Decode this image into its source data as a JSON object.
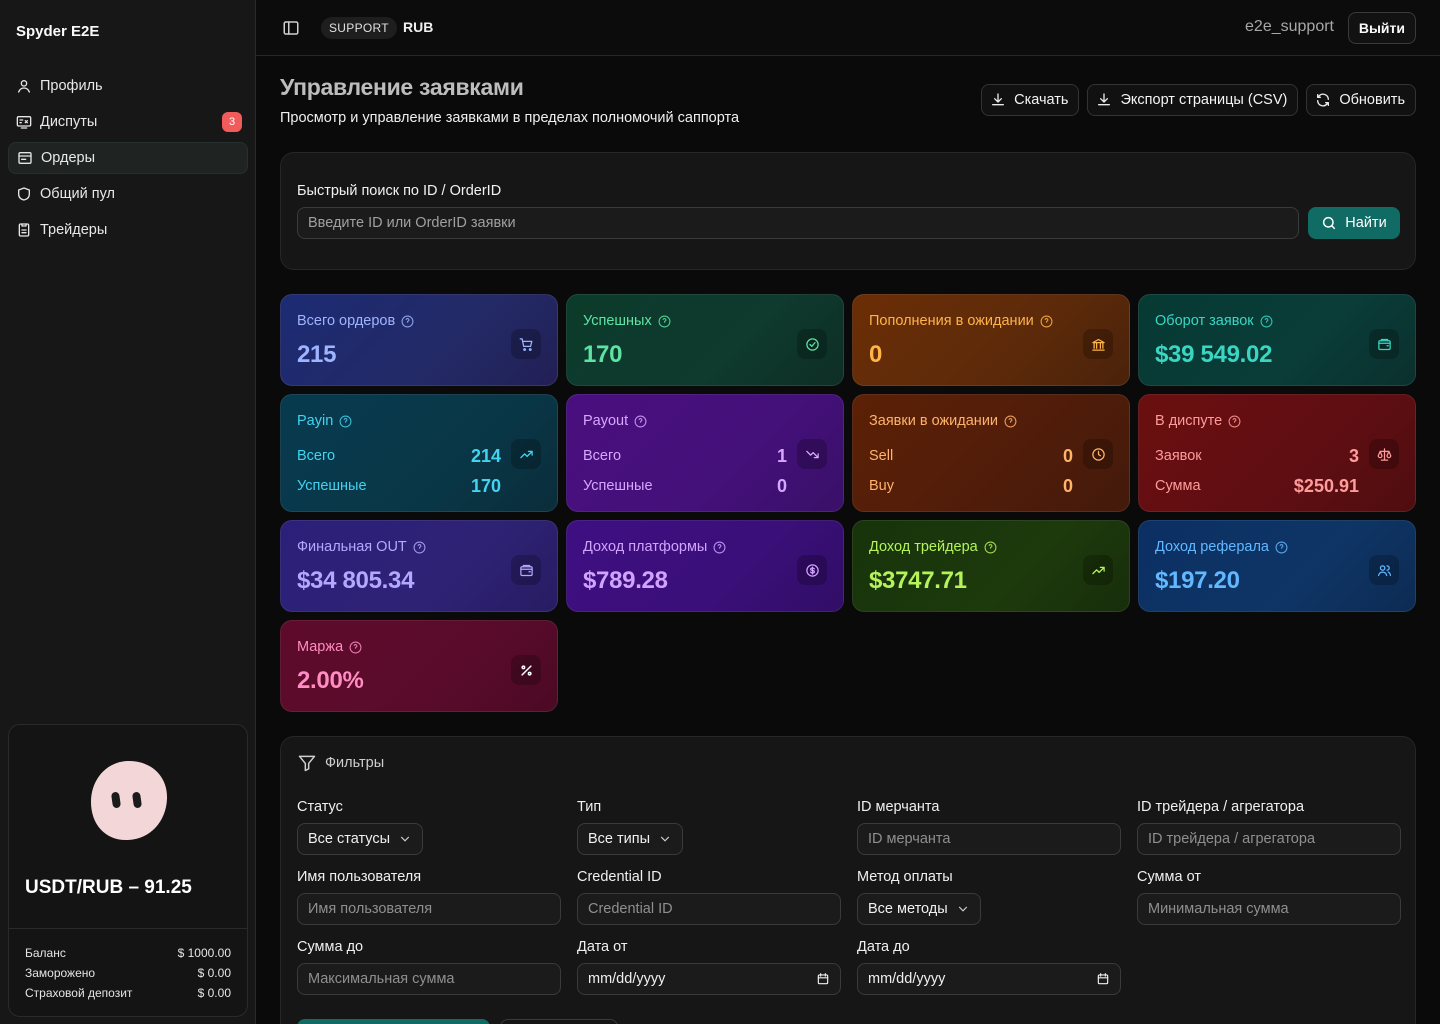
{
  "app": {
    "brand": "Spyder E2E"
  },
  "sidebar": {
    "items": [
      {
        "label": "Профиль",
        "icon": "user-icon"
      },
      {
        "label": "Диспуты",
        "icon": "dispute-icon",
        "badge": "3"
      },
      {
        "label": "Ордеры",
        "icon": "orders-icon",
        "active": true
      },
      {
        "label": "Общий пул",
        "icon": "shield-icon"
      },
      {
        "label": "Трейдеры",
        "icon": "traders-icon"
      }
    ],
    "rate_card": {
      "title": "USDT/RUB – 91.25",
      "rows": [
        {
          "label": "Баланс",
          "value": "$ 1000.00"
        },
        {
          "label": "Заморожено",
          "value": "$ 0.00"
        },
        {
          "label": "Страховой депозит",
          "value": "$ 0.00"
        }
      ]
    }
  },
  "topbar": {
    "role": "SUPPORT",
    "currency": "RUB",
    "username": "e2e_support",
    "logout_label": "Выйти"
  },
  "page": {
    "title": "Управление заявками",
    "subtitle": "Просмотр и управление заявками в пределах полномочий саппорта",
    "actions": {
      "download": "Скачать",
      "export_csv": "Экспорт страницы (CSV)",
      "refresh": "Обновить"
    }
  },
  "search": {
    "label": "Быстрый поиск по ID / OrderID",
    "placeholder": "Введите ID или OrderID заявки",
    "button": "Найти"
  },
  "stats": {
    "total_orders": {
      "label": "Всего ордеров",
      "value": "215"
    },
    "successful": {
      "label": "Успешных",
      "value": "170"
    },
    "pending_deposits": {
      "label": "Пополнения в ожидании",
      "value": "0"
    },
    "turnover": {
      "label": "Оборот заявок",
      "value": "$39 549.02"
    },
    "payin": {
      "label": "Payin",
      "rows": [
        {
          "k": "Всего",
          "v": "214"
        },
        {
          "k": "Успешные",
          "v": "170"
        }
      ]
    },
    "payout": {
      "label": "Payout",
      "rows": [
        {
          "k": "Всего",
          "v": "1"
        },
        {
          "k": "Успешные",
          "v": "0"
        }
      ]
    },
    "pending_orders": {
      "label": "Заявки в ожидании",
      "rows": [
        {
          "k": "Sell",
          "v": "0"
        },
        {
          "k": "Buy",
          "v": "0"
        }
      ]
    },
    "in_dispute": {
      "label": "В диспуте",
      "rows": [
        {
          "k": "Заявок",
          "v": "3"
        },
        {
          "k": "Сумма",
          "v": "$250.91"
        }
      ]
    },
    "final_out": {
      "label": "Финальная OUT",
      "value": "$34 805.34"
    },
    "platform_income": {
      "label": "Доход платформы",
      "value": "$789.28"
    },
    "trader_income": {
      "label": "Доход трейдера",
      "value": "$3747.71"
    },
    "referral_income": {
      "label": "Доход реферала",
      "value": "$197.20"
    },
    "margin": {
      "label": "Маржа",
      "value": "2.00%"
    }
  },
  "filters": {
    "title": "Фильтры",
    "status": {
      "label": "Статус",
      "value": "Все статусы"
    },
    "type": {
      "label": "Тип",
      "value": "Все типы"
    },
    "merchant_id": {
      "label": "ID мерчанта",
      "placeholder": "ID мерчанта"
    },
    "trader_id": {
      "label": "ID трейдера / агрегатора",
      "placeholder": "ID трейдера / агрегатора"
    },
    "username": {
      "label": "Имя пользователя",
      "placeholder": "Имя пользователя"
    },
    "credential_id": {
      "label": "Credential ID",
      "placeholder": "Credential ID"
    },
    "payment_method": {
      "label": "Метод оплаты",
      "value": "Все методы"
    },
    "amount_from": {
      "label": "Сумма от",
      "placeholder": "Минимальная сумма"
    },
    "amount_to": {
      "label": "Сумма до",
      "placeholder": "Максимальная сумма"
    },
    "date_from": {
      "label": "Дата от",
      "value": "mm/dd/yyyy"
    },
    "date_to": {
      "label": "Дата до",
      "value": "mm/dd/yyyy"
    }
  }
}
